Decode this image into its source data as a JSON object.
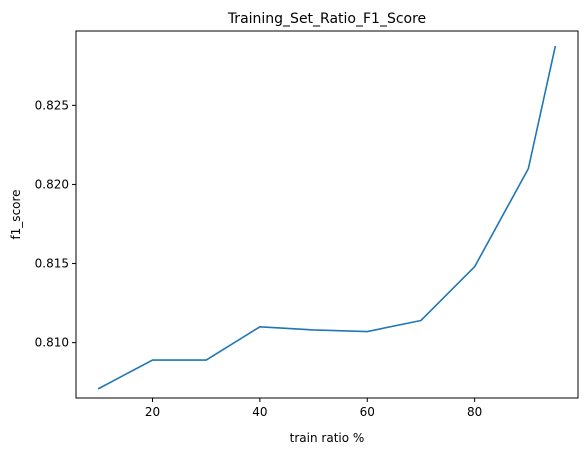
{
  "chart_data": {
    "type": "line",
    "title": "Training_Set_Ratio_F1_Score",
    "xlabel": "train ratio %",
    "ylabel": "f1_score",
    "xlim": [
      5.75,
      99.25
    ],
    "ylim": [
      0.8065,
      0.8297
    ],
    "xticks": [
      20,
      40,
      60,
      80
    ],
    "xtick_labels": [
      "20",
      "40",
      "60",
      "80"
    ],
    "yticks": [
      0.81,
      0.815,
      0.82,
      0.825
    ],
    "ytick_labels": [
      "0.810",
      "0.815",
      "0.820",
      "0.825"
    ],
    "grid": false,
    "series": [
      {
        "color": "#1f77b4",
        "x": [
          10,
          20,
          30,
          40,
          50,
          60,
          70,
          80,
          90,
          95
        ],
        "y": [
          0.8071,
          0.8089,
          0.8089,
          0.811,
          0.8108,
          0.8107,
          0.8114,
          0.8148,
          0.821,
          0.8287
        ]
      }
    ]
  }
}
